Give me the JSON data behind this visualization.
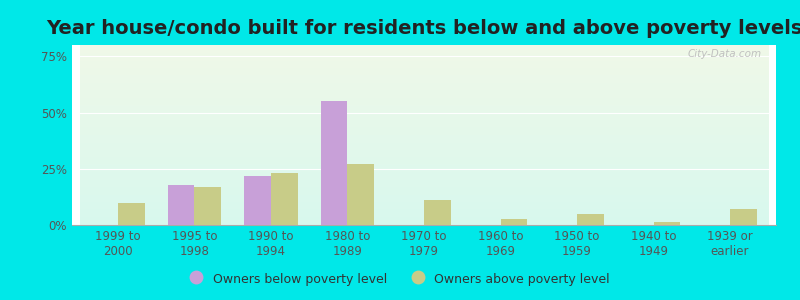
{
  "title": "Year house/condo built for residents below and above poverty levels",
  "categories": [
    "1999 to\n2000",
    "1995 to\n1998",
    "1990 to\n1994",
    "1980 to\n1989",
    "1970 to\n1979",
    "1960 to\n1969",
    "1950 to\n1959",
    "1940 to\n1949",
    "1939 or\nearlier"
  ],
  "below_poverty": [
    0.0,
    18.0,
    22.0,
    55.0,
    0.0,
    0.0,
    0.0,
    0.0,
    0.0
  ],
  "above_poverty": [
    10.0,
    17.0,
    23.0,
    27.0,
    11.0,
    2.5,
    5.0,
    1.5,
    7.0
  ],
  "below_color": "#c8a0d8",
  "above_color": "#c8cc88",
  "background_top": "#f0f8e8",
  "background_bottom": "#d8f8ee",
  "outer_background": "#00e8e8",
  "yticks": [
    0,
    25,
    50,
    75
  ],
  "ylim": [
    0,
    80
  ],
  "bar_width": 0.35,
  "legend_below_label": "Owners below poverty level",
  "legend_above_label": "Owners above poverty level",
  "title_fontsize": 14,
  "tick_fontsize": 8.5,
  "legend_fontsize": 9,
  "watermark": "City-Data.com"
}
